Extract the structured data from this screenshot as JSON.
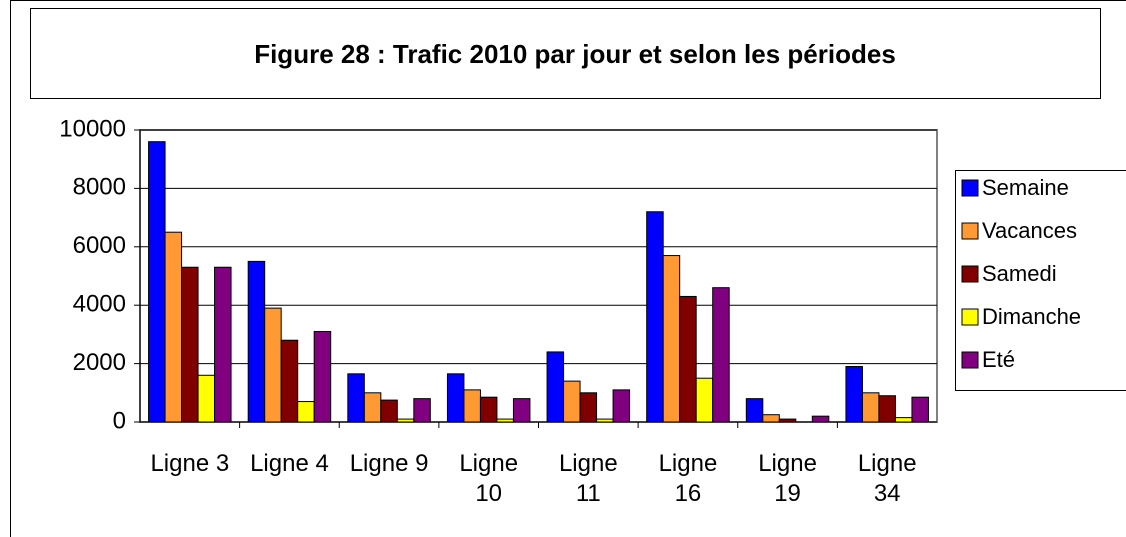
{
  "chart_data": {
    "type": "bar",
    "title": "Figure 28 : Trafic 2010 par jour et selon les périodes",
    "categories": [
      "Ligne 3",
      "Ligne 4",
      "Ligne 9",
      "Ligne 10",
      "Ligne 11",
      "Ligne 16",
      "Ligne 19",
      "Ligne 34"
    ],
    "series": [
      {
        "name": "Semaine",
        "color": "#0000ff",
        "values": [
          9600,
          5500,
          1650,
          1650,
          2400,
          7200,
          800,
          1900
        ]
      },
      {
        "name": "Vacances",
        "color": "#ff9933",
        "values": [
          6500,
          3900,
          1000,
          1100,
          1400,
          5700,
          250,
          1000
        ]
      },
      {
        "name": "Samedi",
        "color": "#800000",
        "values": [
          5300,
          2800,
          750,
          850,
          1000,
          4300,
          100,
          900
        ]
      },
      {
        "name": "Dimanche",
        "color": "#ffff00",
        "values": [
          1600,
          700,
          100,
          100,
          100,
          1500,
          0,
          150
        ]
      },
      {
        "name": "Eté",
        "color": "#800080",
        "values": [
          5300,
          3100,
          800,
          800,
          1100,
          4600,
          200,
          850
        ]
      }
    ],
    "ylim": [
      0,
      10000
    ],
    "yticks": [
      0,
      2000,
      4000,
      6000,
      8000,
      10000
    ],
    "grid": true,
    "legend": "right"
  }
}
